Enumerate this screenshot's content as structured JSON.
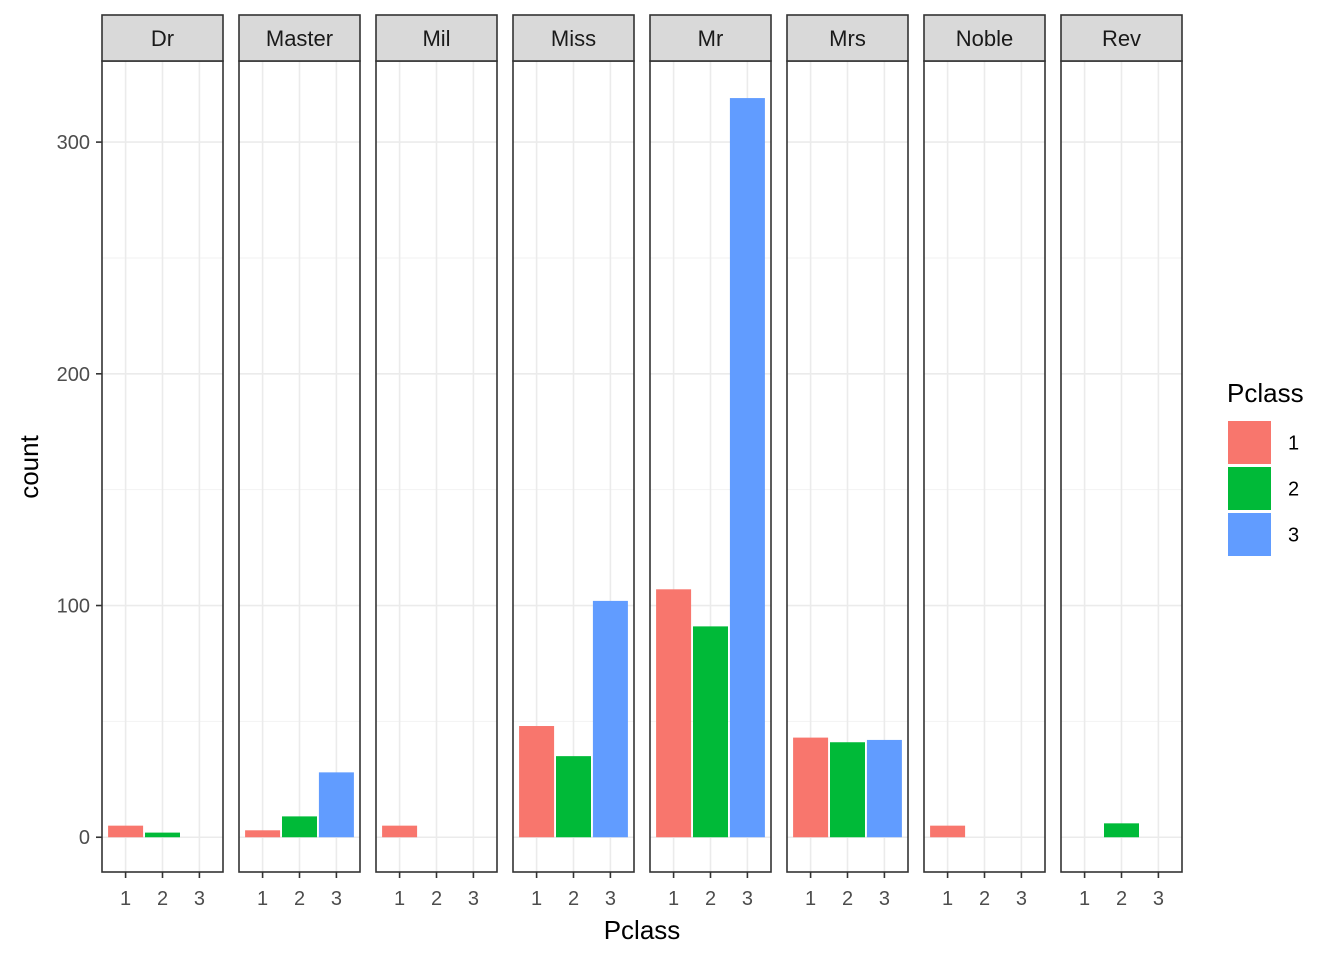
{
  "chart_data": {
    "type": "bar",
    "facet_variable": "Title",
    "xlabel": "Pclass",
    "ylabel": "count",
    "categories": [
      "1",
      "2",
      "3"
    ],
    "ylim": [
      -15,
      335
    ],
    "y_ticks": [
      0,
      100,
      200,
      300
    ],
    "y_tick_labels": [
      "0",
      "100",
      "200",
      "300"
    ],
    "legend": {
      "title": "Pclass",
      "placement": "right",
      "entries": [
        {
          "label": "1",
          "color": "#F8766D"
        },
        {
          "label": "2",
          "color": "#00BA38"
        },
        {
          "label": "3",
          "color": "#619CFF"
        }
      ]
    },
    "facets": [
      {
        "label": "Dr",
        "values": [
          5,
          2,
          0
        ]
      },
      {
        "label": "Master",
        "values": [
          3,
          9,
          28
        ]
      },
      {
        "label": "Mil",
        "values": [
          5,
          0,
          0
        ]
      },
      {
        "label": "Miss",
        "values": [
          48,
          35,
          102
        ]
      },
      {
        "label": "Mr",
        "values": [
          107,
          91,
          319
        ]
      },
      {
        "label": "Mrs",
        "values": [
          43,
          41,
          42
        ]
      },
      {
        "label": "Noble",
        "values": [
          5,
          0,
          0
        ]
      },
      {
        "label": "Rev",
        "values": [
          0,
          6,
          0
        ]
      }
    ]
  }
}
